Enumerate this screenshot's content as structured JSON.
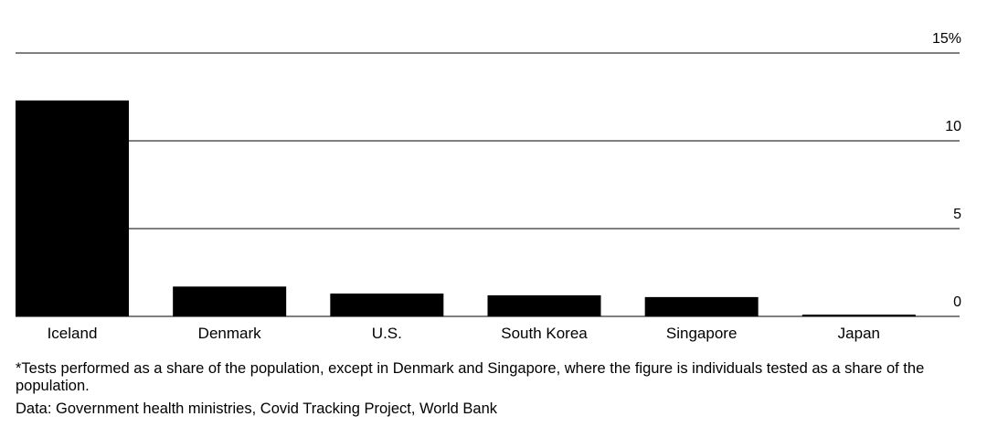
{
  "chart_data": {
    "type": "bar",
    "categories": [
      "Iceland",
      "Denmark",
      "U.S.",
      "South Korea",
      "Singapore",
      "Japan"
    ],
    "values": [
      12.3,
      1.7,
      1.3,
      1.2,
      1.1,
      0.1
    ],
    "ylim": [
      0,
      15
    ],
    "yticks": [
      0,
      5,
      10,
      15
    ],
    "ytick_labels": [
      "0",
      "5",
      "10",
      "15%"
    ],
    "grid": true,
    "bar_color": "#000000",
    "title": "",
    "xlabel": "",
    "ylabel": ""
  },
  "footnote": "*Tests performed as a share of the population, except in Denmark and Singapore, where the figure is individuals tested as a share of the population.",
  "source": "Data: Government health ministries, Covid Tracking Project, World Bank"
}
